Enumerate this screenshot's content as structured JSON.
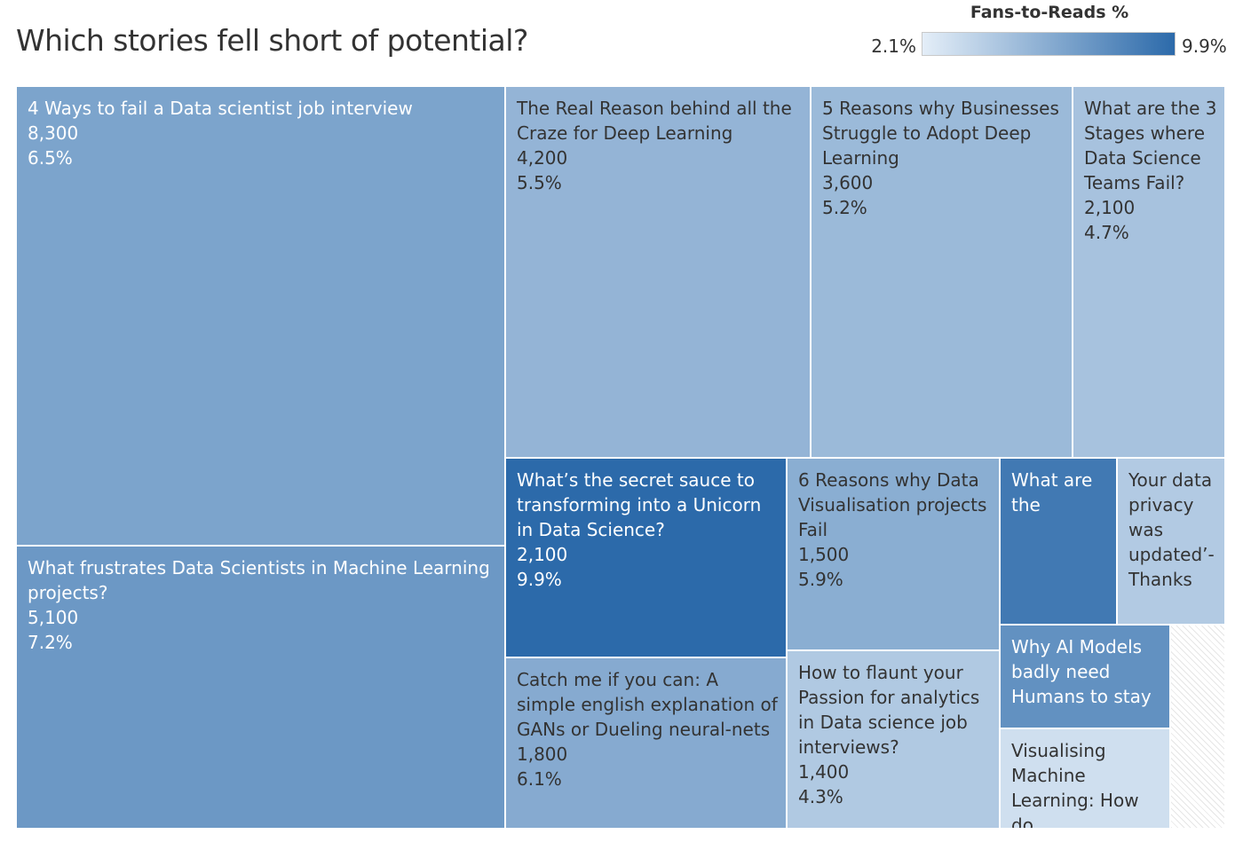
{
  "chart_data": {
    "type": "treemap",
    "title": "Which stories fell short of potential?",
    "size_measure": "Reads",
    "color_measure": "Fans-to-Reads %",
    "legend": {
      "title": "Fans-to-Reads %",
      "min_label": "2.1%",
      "max_label": "9.9%",
      "min": 2.1,
      "max": 9.9,
      "color_low": "#e4eef8",
      "color_high": "#2c6aaa",
      "placement": "top-right"
    },
    "items": [
      {
        "title": "4 Ways to fail a Data scientist job interview",
        "reads": 8300,
        "rate": 6.5,
        "reads_label": "8,300",
        "rate_label": "6.5%"
      },
      {
        "title": "What frustrates Data Scientists in Machine Learning projects?",
        "reads": 5100,
        "rate": 7.2,
        "reads_label": "5,100",
        "rate_label": "7.2%"
      },
      {
        "title": "The Real Reason behind all the Craze for Deep Learning",
        "reads": 4200,
        "rate": 5.5,
        "reads_label": "4,200",
        "rate_label": "5.5%"
      },
      {
        "title": "5 Reasons why Businesses Struggle to Adopt Deep Learning",
        "reads": 3600,
        "rate": 5.2,
        "reads_label": "3,600",
        "rate_label": "5.2%"
      },
      {
        "title": "What are the 3 Stages where Data Science Teams Fail?",
        "reads": 2100,
        "rate": 4.7,
        "reads_label": "2,100",
        "rate_label": "4.7%"
      },
      {
        "title": "What’s the secret sauce to transforming into a Unicorn in Data Science?",
        "reads": 2100,
        "rate": 9.9,
        "reads_label": "2,100",
        "rate_label": "9.9%"
      },
      {
        "title": "Catch me if you can: A simple english explanation of GANs or Dueling neural-nets",
        "reads": 1800,
        "rate": 6.1,
        "reads_label": "1,800",
        "rate_label": "6.1%"
      },
      {
        "title": "6 Reasons why Data Visualisation projects Fail",
        "reads": 1500,
        "rate": 5.9,
        "reads_label": "1,500",
        "rate_label": "5.9%"
      },
      {
        "title": "How to flaunt your Passion for analytics in Data science job interviews?",
        "reads": 1400,
        "rate": 4.3,
        "reads_label": "1,400",
        "rate_label": "4.3%"
      },
      {
        "title": "What are the",
        "reads": null,
        "rate": 9.0,
        "reads_label": "",
        "rate_label": ""
      },
      {
        "title": "Your data privacy was updated’- Thanks",
        "reads": null,
        "rate": 4.2,
        "reads_label": "",
        "rate_label": ""
      },
      {
        "title": "Why AI Models badly need Humans to stay",
        "reads": null,
        "rate": 7.6,
        "reads_label": "",
        "rate_label": ""
      },
      {
        "title": "Visualising Machine Learning: How do",
        "reads": null,
        "rate": 3.0,
        "reads_label": "",
        "rate_label": ""
      }
    ]
  }
}
